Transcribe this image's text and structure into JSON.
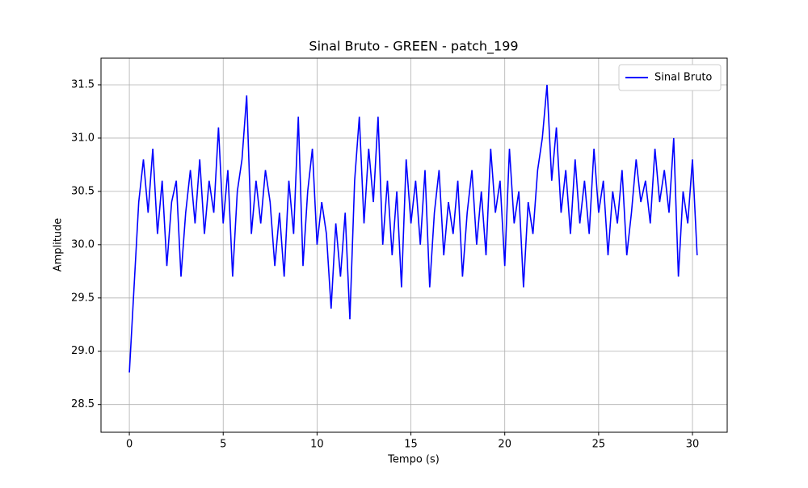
{
  "chart_data": {
    "type": "line",
    "title": "Sinal Bruto - GREEN - patch_199",
    "x_label": "Tempo (s)",
    "y_label": "Amplitude",
    "x": [
      0,
      0.25,
      0.5,
      0.75,
      1,
      1.25,
      1.5,
      1.75,
      2,
      2.25,
      2.5,
      2.75,
      3,
      3.25,
      3.5,
      3.75,
      4,
      4.25,
      4.5,
      4.75,
      5,
      5.25,
      5.5,
      5.75,
      6,
      6.25,
      6.5,
      6.75,
      7,
      7.25,
      7.5,
      7.75,
      8,
      8.25,
      8.5,
      8.75,
      9,
      9.25,
      9.5,
      9.75,
      10,
      10.25,
      10.5,
      10.75,
      11,
      11.25,
      11.5,
      11.75,
      12,
      12.25,
      12.5,
      12.75,
      13,
      13.25,
      13.5,
      13.75,
      14,
      14.25,
      14.5,
      14.75,
      15,
      15.25,
      15.5,
      15.75,
      16,
      16.25,
      16.5,
      16.75,
      17,
      17.25,
      17.5,
      17.75,
      18,
      18.25,
      18.5,
      18.75,
      19,
      19.25,
      19.5,
      19.75,
      20,
      20.25,
      20.5,
      20.75,
      21,
      21.25,
      21.5,
      21.75,
      22,
      22.25,
      22.5,
      22.75,
      23,
      23.25,
      23.5,
      23.75,
      24,
      24.25,
      24.5,
      24.75,
      25,
      25.25,
      25.5,
      25.75,
      26,
      26.25,
      26.5,
      26.75,
      27,
      27.25,
      27.5,
      27.75,
      28,
      28.25,
      28.5,
      28.75,
      29,
      29.25,
      29.5,
      29.75,
      30,
      30.25
    ],
    "series": [
      {
        "name": "Sinal Bruto",
        "color": "#0000ff",
        "values": [
          28.8,
          29.6,
          30.4,
          30.8,
          30.3,
          30.9,
          30.1,
          30.6,
          29.8,
          30.4,
          30.6,
          29.7,
          30.3,
          30.7,
          30.2,
          30.8,
          30.1,
          30.6,
          30.3,
          31.1,
          30.2,
          30.7,
          29.7,
          30.5,
          30.8,
          31.4,
          30.1,
          30.6,
          30.2,
          30.7,
          30.4,
          29.8,
          30.3,
          29.7,
          30.6,
          30.1,
          31.2,
          29.8,
          30.5,
          30.9,
          30.0,
          30.4,
          30.1,
          29.4,
          30.2,
          29.7,
          30.3,
          29.3,
          30.6,
          31.2,
          30.2,
          30.9,
          30.4,
          31.2,
          30.0,
          30.6,
          29.9,
          30.5,
          29.6,
          30.8,
          30.2,
          30.6,
          30.0,
          30.7,
          29.6,
          30.3,
          30.7,
          29.9,
          30.4,
          30.1,
          30.6,
          29.7,
          30.3,
          30.7,
          30.0,
          30.5,
          29.9,
          30.9,
          30.3,
          30.6,
          29.8,
          30.9,
          30.2,
          30.5,
          29.6,
          30.4,
          30.1,
          30.7,
          31.0,
          31.5,
          30.6,
          31.1,
          30.3,
          30.7,
          30.1,
          30.8,
          30.2,
          30.6,
          30.1,
          30.9,
          30.3,
          30.6,
          29.9,
          30.5,
          30.2,
          30.7,
          29.9,
          30.3,
          30.8,
          30.4,
          30.6,
          30.2,
          30.9,
          30.4,
          30.7,
          30.3,
          31.0,
          29.7,
          30.5,
          30.2,
          30.8,
          29.9
        ]
      }
    ],
    "xlim": [
      -1.51,
      31.85
    ],
    "ylim": [
      28.24,
      31.75
    ],
    "xticks": [
      0,
      5,
      10,
      15,
      20,
      25,
      30
    ],
    "yticks": [
      28.5,
      {
        "value": 29.0,
        "label": "29.0"
      },
      29.5,
      {
        "value": 30.0,
        "label": "30.0"
      },
      30.5,
      {
        "value": 31.0,
        "label": "31.0"
      },
      31.5
    ],
    "grid": true,
    "legend": "upper right"
  }
}
